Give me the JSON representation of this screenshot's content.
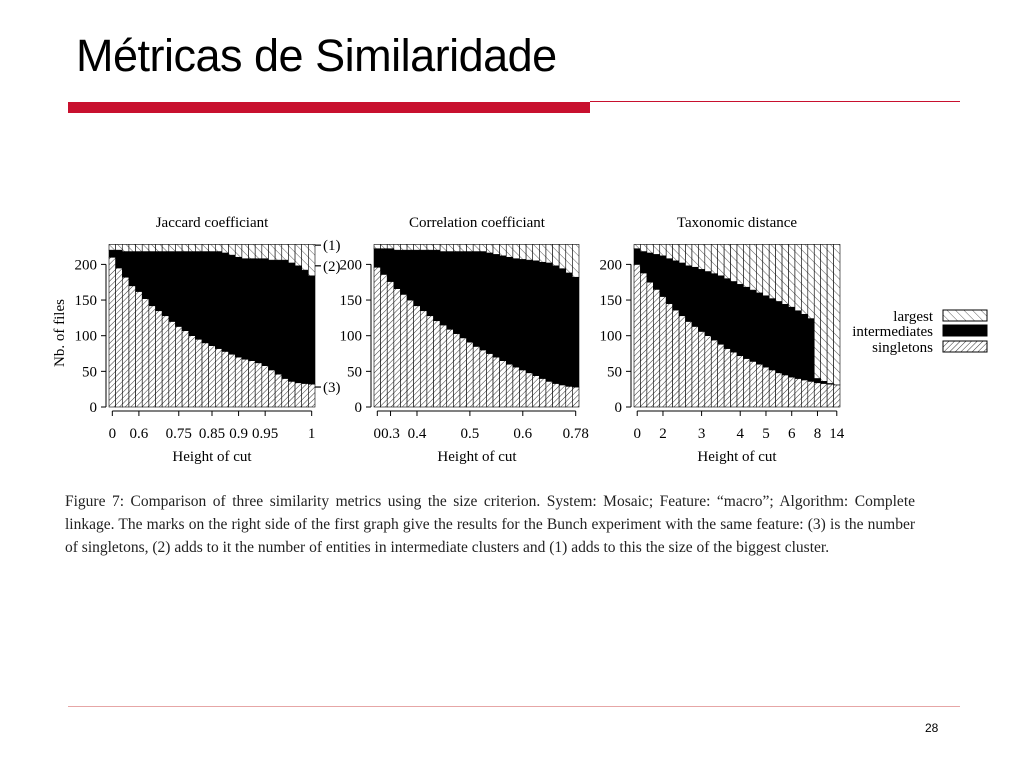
{
  "slide": {
    "title": "Métricas de Similaridade",
    "page_number": "28",
    "accent_color": "#c8102e"
  },
  "caption": "Figure 7: Comparison of three similarity metrics using the size criterion. System: Mosaic; Feature: “macro”; Algorithm: Complete linkage. The marks on the right side of the first graph give the results for the Bunch experiment with the same feature: (3) is the number of singletons, (2) adds to it the number of entities in intermediate clusters and (1) adds to this the size of the biggest cluster.",
  "chart_data": [
    {
      "type": "bar",
      "stacked": true,
      "title": "Jaccard coefficiant",
      "xlabel": "Height of cut",
      "ylabel": "Nb. of files",
      "ylim": [
        0,
        230
      ],
      "yticks": [
        0,
        50,
        100,
        150,
        200
      ],
      "total": 228,
      "xtick_labels": [
        "0",
        "0.6",
        "0.75",
        "0.85",
        "0.9",
        "0.95",
        "1"
      ],
      "xtick_bars": [
        0,
        4,
        10,
        15,
        19,
        23,
        30
      ],
      "bars": 31,
      "singletons": [
        210,
        195,
        182,
        170,
        162,
        152,
        142,
        135,
        128,
        120,
        113,
        107,
        100,
        95,
        90,
        86,
        82,
        78,
        74,
        70,
        67,
        65,
        62,
        58,
        52,
        46,
        40,
        36,
        34,
        33,
        32
      ],
      "intermediates_top": [
        220,
        220,
        218,
        218,
        218,
        218,
        218,
        218,
        218,
        218,
        218,
        218,
        218,
        218,
        218,
        218,
        218,
        216,
        213,
        210,
        208,
        208,
        208,
        208,
        206,
        206,
        206,
        202,
        198,
        192,
        184
      ],
      "bunch_marks": [
        {
          "label": "(1)",
          "value": 227
        },
        {
          "label": "(2)",
          "value": 198
        },
        {
          "label": "(3)",
          "value": 28
        }
      ]
    },
    {
      "type": "bar",
      "stacked": true,
      "title": "Correlation coefficiant",
      "xlabel": "Height of cut",
      "ylim": [
        0,
        230
      ],
      "yticks": [
        0,
        50,
        100,
        150,
        200
      ],
      "total": 228,
      "xtick_labels": [
        "0",
        "0.3",
        "0.4",
        "0.5",
        "0.6",
        "0.78"
      ],
      "xtick_bars": [
        0,
        2,
        6,
        14,
        22,
        30
      ],
      "bars": 31,
      "singletons": [
        196,
        186,
        176,
        166,
        158,
        150,
        142,
        135,
        128,
        121,
        115,
        109,
        103,
        97,
        91,
        85,
        80,
        75,
        70,
        65,
        60,
        56,
        52,
        48,
        44,
        40,
        36,
        33,
        31,
        29,
        28
      ],
      "intermediates_top": [
        222,
        222,
        222,
        220,
        220,
        220,
        220,
        220,
        220,
        220,
        218,
        218,
        218,
        218,
        218,
        218,
        218,
        216,
        214,
        212,
        210,
        208,
        207,
        206,
        205,
        203,
        202,
        198,
        194,
        188,
        182
      ]
    },
    {
      "type": "bar",
      "stacked": true,
      "title": "Taxonomic distance",
      "xlabel": "Height of cut",
      "ylim": [
        0,
        230
      ],
      "yticks": [
        0,
        50,
        100,
        150,
        200
      ],
      "total": 228,
      "xtick_labels": [
        "0",
        "2",
        "3",
        "4",
        "5",
        "6",
        "8",
        "14"
      ],
      "xtick_bars": [
        0,
        4,
        10,
        16,
        20,
        24,
        28,
        31
      ],
      "bars": 32,
      "singletons": [
        200,
        188,
        175,
        165,
        155,
        145,
        136,
        128,
        120,
        113,
        106,
        100,
        94,
        88,
        82,
        77,
        72,
        68,
        64,
        60,
        56,
        52,
        48,
        45,
        42,
        40,
        38,
        36,
        34,
        33,
        32,
        31
      ],
      "intermediates_top": [
        222,
        218,
        216,
        214,
        212,
        208,
        205,
        202,
        198,
        196,
        193,
        190,
        187,
        184,
        180,
        176,
        172,
        168,
        164,
        160,
        156,
        152,
        148,
        144,
        140,
        135,
        130,
        124,
        40,
        36,
        33,
        31
      ]
    }
  ],
  "legend": {
    "placement": "right",
    "entries": [
      "largest",
      "intermediates",
      "singletons"
    ]
  }
}
